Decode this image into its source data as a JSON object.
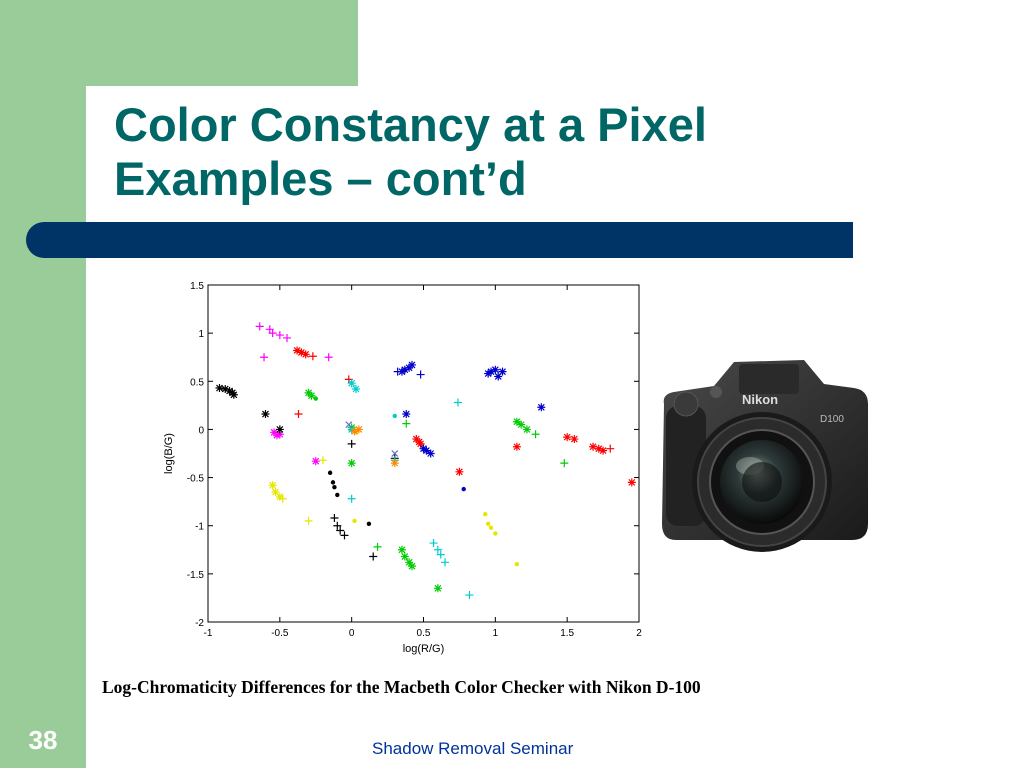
{
  "slide": {
    "title_line1": "Color Constancy at a Pixel",
    "title_line2": "Examples – cont’d",
    "caption": "Log-Chromaticity Differences for the Macbeth Color Checker with Nikon D-100",
    "footer": "Shadow Removal Seminar",
    "slide_number": "38"
  },
  "camera": {
    "brand_label": "Nikon",
    "model_label": "D100"
  },
  "colors": {
    "green_bg": "#99cc99",
    "title": "#006666",
    "bar": "#003366",
    "footer": "#003399"
  },
  "chart_data": {
    "type": "scatter",
    "title": "",
    "xlabel": "log(R/G)",
    "ylabel": "log(B/G)",
    "xlim": [
      -1,
      2
    ],
    "ylim": [
      -2,
      1.5
    ],
    "xticks": [
      -1,
      -0.5,
      0,
      0.5,
      1,
      1.5,
      2
    ],
    "xtick_labels": [
      "-1",
      "-0.5",
      "0",
      "0.5",
      "1",
      "1.5",
      "2"
    ],
    "yticks": [
      1.5,
      1,
      0.5,
      0,
      -0.5,
      -1,
      -1.5,
      -2
    ],
    "ytick_labels": [
      "1.5",
      "1",
      "0.5",
      "0",
      "-0.5",
      "-1",
      "-1.5",
      "-2"
    ],
    "grid": false,
    "series": [
      {
        "color": "#ff00ff",
        "marker": "+",
        "points": [
          [
            -0.64,
            1.07
          ],
          [
            -0.57,
            1.04
          ],
          [
            -0.55,
            1.0
          ],
          [
            -0.5,
            0.98
          ],
          [
            -0.45,
            0.95
          ],
          [
            -0.61,
            0.75
          ],
          [
            -0.16,
            0.75
          ]
        ]
      },
      {
        "color": "#ff00ff",
        "marker": "*",
        "points": [
          [
            -0.54,
            -0.03
          ],
          [
            -0.52,
            -0.06
          ],
          [
            -0.5,
            -0.05
          ],
          [
            -0.25,
            -0.33
          ]
        ]
      },
      {
        "color": "#ff0000",
        "marker": "*",
        "points": [
          [
            -0.38,
            0.82
          ],
          [
            -0.35,
            0.8
          ],
          [
            -0.32,
            0.78
          ],
          [
            0.45,
            -0.1
          ],
          [
            0.47,
            -0.13
          ],
          [
            0.48,
            -0.15
          ],
          [
            1.5,
            -0.08
          ],
          [
            1.55,
            -0.1
          ],
          [
            1.68,
            -0.18
          ],
          [
            1.72,
            -0.2
          ],
          [
            1.75,
            -0.22
          ],
          [
            1.95,
            -0.55
          ],
          [
            0.75,
            -0.44
          ],
          [
            1.15,
            -0.18
          ]
        ]
      },
      {
        "color": "#ff0000",
        "marker": "+",
        "points": [
          [
            -0.27,
            0.76
          ],
          [
            -0.37,
            0.16
          ],
          [
            -0.02,
            0.52
          ],
          [
            1.8,
            -0.2
          ]
        ]
      },
      {
        "color": "#0000cc",
        "marker": "*",
        "points": [
          [
            0.35,
            0.6
          ],
          [
            0.37,
            0.62
          ],
          [
            0.4,
            0.64
          ],
          [
            0.42,
            0.67
          ],
          [
            0.95,
            0.58
          ],
          [
            0.97,
            0.6
          ],
          [
            1.0,
            0.62
          ],
          [
            1.02,
            0.55
          ],
          [
            1.05,
            0.6
          ],
          [
            0.38,
            0.16
          ],
          [
            0.5,
            -0.2
          ],
          [
            0.52,
            -0.22
          ],
          [
            0.55,
            -0.25
          ],
          [
            1.32,
            0.23
          ]
        ]
      },
      {
        "color": "#0000cc",
        "marker": "+",
        "points": [
          [
            0.48,
            0.57
          ],
          [
            0.32,
            0.6
          ]
        ]
      },
      {
        "color": "#0000cc",
        "marker": "dot",
        "points": [
          [
            0.78,
            -0.62
          ]
        ]
      },
      {
        "color": "#000000",
        "marker": "*",
        "points": [
          [
            -0.92,
            0.43
          ],
          [
            -0.88,
            0.42
          ],
          [
            -0.85,
            0.4
          ],
          [
            -0.83,
            0.38
          ],
          [
            -0.82,
            0.36
          ],
          [
            -0.6,
            0.16
          ],
          [
            -0.5,
            0.0
          ]
        ]
      },
      {
        "color": "#000000",
        "marker": "+",
        "points": [
          [
            0.0,
            -0.15
          ],
          [
            -0.12,
            -0.92
          ],
          [
            -0.1,
            -1.0
          ],
          [
            -0.08,
            -1.05
          ],
          [
            -0.05,
            -1.1
          ],
          [
            0.15,
            -1.32
          ],
          [
            0.3,
            -0.3
          ]
        ]
      },
      {
        "color": "#000000",
        "marker": "dot",
        "points": [
          [
            -0.15,
            -0.45
          ],
          [
            -0.13,
            -0.55
          ],
          [
            -0.12,
            -0.6
          ],
          [
            -0.1,
            -0.68
          ],
          [
            0.12,
            -0.98
          ]
        ]
      },
      {
        "color": "#00cc00",
        "marker": "*",
        "points": [
          [
            -0.3,
            0.38
          ],
          [
            -0.28,
            0.35
          ],
          [
            0.35,
            -1.25
          ],
          [
            0.37,
            -1.32
          ],
          [
            0.4,
            -1.38
          ],
          [
            0.42,
            -1.42
          ],
          [
            1.15,
            0.08
          ],
          [
            1.18,
            0.05
          ],
          [
            1.22,
            0.0
          ],
          [
            0.6,
            -1.65
          ],
          [
            0.0,
            -0.35
          ],
          [
            0.0,
            0.02
          ]
        ]
      },
      {
        "color": "#00cc00",
        "marker": "+",
        "points": [
          [
            0.18,
            -1.22
          ],
          [
            0.38,
            0.06
          ],
          [
            1.48,
            -0.35
          ],
          [
            1.28,
            -0.05
          ]
        ]
      },
      {
        "color": "#00cc00",
        "marker": "dot",
        "points": [
          [
            -0.25,
            0.32
          ]
        ]
      },
      {
        "color": "#00cccc",
        "marker": "+",
        "points": [
          [
            0.57,
            -1.18
          ],
          [
            0.6,
            -1.25
          ],
          [
            0.62,
            -1.3
          ],
          [
            0.65,
            -1.38
          ],
          [
            0.82,
            -1.72
          ],
          [
            0.74,
            0.28
          ],
          [
            0.0,
            -0.72
          ],
          [
            0.3,
            -0.32
          ]
        ]
      },
      {
        "color": "#00cccc",
        "marker": "*",
        "points": [
          [
            0.0,
            0.48
          ],
          [
            0.03,
            0.42
          ],
          [
            0.0,
            0.0
          ]
        ]
      },
      {
        "color": "#00cccc",
        "marker": "dot",
        "points": [
          [
            0.3,
            0.14
          ]
        ]
      },
      {
        "color": "#e6e600",
        "marker": "*",
        "points": [
          [
            -0.55,
            -0.58
          ],
          [
            -0.53,
            -0.65
          ],
          [
            -0.5,
            -0.7
          ]
        ]
      },
      {
        "color": "#e6e600",
        "marker": "+",
        "points": [
          [
            -0.3,
            -0.95
          ],
          [
            -0.2,
            -0.32
          ],
          [
            -0.48,
            -0.72
          ]
        ]
      },
      {
        "color": "#e6e600",
        "marker": "dot",
        "points": [
          [
            0.93,
            -0.88
          ],
          [
            0.95,
            -0.98
          ],
          [
            0.97,
            -1.02
          ],
          [
            1.0,
            -1.08
          ],
          [
            1.15,
            -1.4
          ],
          [
            0.02,
            -0.95
          ],
          [
            0.03,
            -0.03
          ]
        ]
      },
      {
        "color": "#ff8800",
        "marker": "*",
        "points": [
          [
            0.02,
            -0.02
          ],
          [
            0.05,
            0.0
          ],
          [
            0.3,
            -0.35
          ]
        ]
      },
      {
        "color": "#6666cc",
        "marker": "x",
        "points": [
          [
            -0.02,
            0.05
          ],
          [
            0.3,
            -0.25
          ]
        ]
      }
    ]
  }
}
